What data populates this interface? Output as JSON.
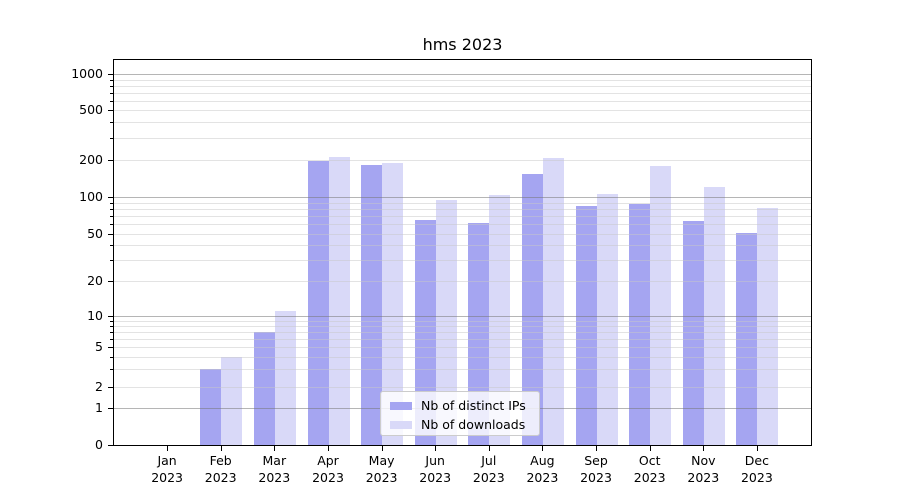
{
  "title": "hms 2023",
  "chart_data": {
    "type": "bar",
    "title": "hms 2023",
    "categories": [
      "Jan 2023",
      "Feb 2023",
      "Mar 2023",
      "Apr 2023",
      "May 2023",
      "Jun 2023",
      "Jul 2023",
      "Aug 2023",
      "Sep 2023",
      "Oct 2023",
      "Nov 2023",
      "Dec 2023"
    ],
    "month_labels": [
      "Jan",
      "Feb",
      "Mar",
      "Apr",
      "May",
      "Jun",
      "Jul",
      "Aug",
      "Sep",
      "Oct",
      "Nov",
      "Dec"
    ],
    "year_label": "2023",
    "series": [
      {
        "name": "Nb of distinct IPs",
        "color": "#a5a5f1",
        "values": [
          0,
          3,
          7,
          197,
          184,
          65,
          61,
          155,
          84,
          88,
          64,
          51
        ]
      },
      {
        "name": "Nb of downloads",
        "color": "#d9d9f8",
        "values": [
          0,
          4,
          11,
          212,
          190,
          95,
          104,
          209,
          105,
          178,
          120,
          82
        ]
      }
    ],
    "yscale": "symlog",
    "y_ticks": [
      0,
      1,
      2,
      5,
      10,
      20,
      50,
      100,
      200,
      500,
      1000
    ],
    "ylim": [
      0,
      1300
    ],
    "grid": true,
    "legend_position": "lower center"
  },
  "colors": {
    "bar_distinct_ips": "#a5a5f1",
    "bar_downloads": "#d9d9f8",
    "grid_major": "#ababab",
    "grid_minor": "#e5e5e5",
    "axis_spine": "#000000",
    "legend_border": "#cccccc"
  }
}
